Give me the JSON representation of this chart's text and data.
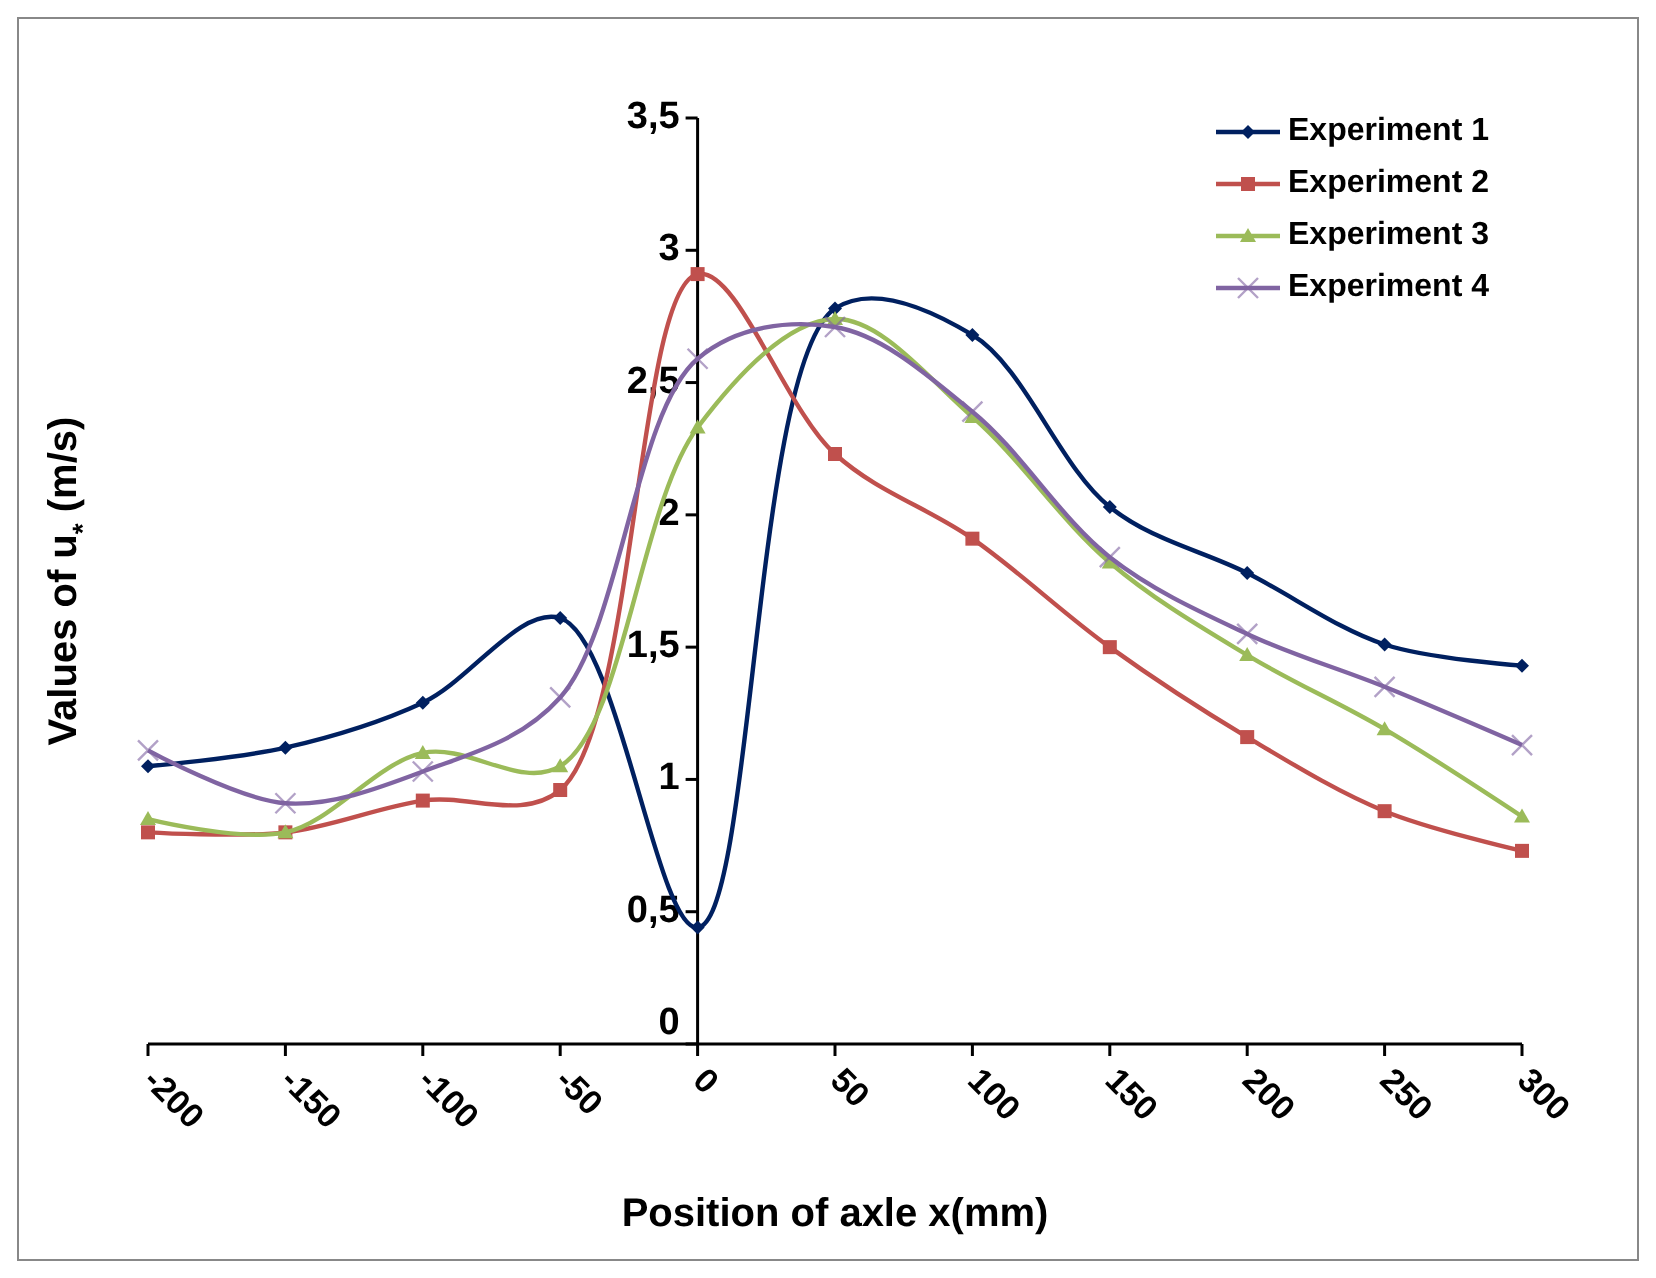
{
  "chart_data": {
    "type": "line",
    "xlabel": "Position of axle x(mm)",
    "ylabel": "Values of u$_{*}$ (m/s)",
    "x": [
      -200,
      -150,
      -100,
      -50,
      0,
      50,
      100,
      150,
      200,
      250,
      300
    ],
    "xlim": [
      -200,
      300
    ],
    "xticks": [
      -200,
      -150,
      -100,
      -50,
      0,
      50,
      100,
      150,
      200,
      250,
      300
    ],
    "ylim": [
      0,
      3.5
    ],
    "yticks": [
      0,
      {
        "value": 0.5,
        "label": "0,5"
      },
      1,
      {
        "value": 1.5,
        "label": "1,5"
      },
      2,
      {
        "value": 2.5,
        "label": "2,5"
      },
      3,
      {
        "value": 3.5,
        "label": "3,5"
      }
    ],
    "legend": "top right",
    "grid": false,
    "series": [
      {
        "name": "Experiment 1",
        "color": "#002060",
        "marker": "diamond",
        "values": [
          1.05,
          1.12,
          1.29,
          1.61,
          0.44,
          2.78,
          2.68,
          2.03,
          1.78,
          1.51,
          1.43
        ]
      },
      {
        "name": "Experiment 2",
        "color": "#c0504d",
        "marker": "square",
        "values": [
          0.8,
          0.8,
          0.92,
          0.96,
          2.91,
          2.23,
          1.91,
          1.5,
          1.16,
          0.88,
          0.73
        ]
      },
      {
        "name": "Experiment 3",
        "color": "#9bbb59",
        "marker": "triangle",
        "values": [
          0.85,
          0.8,
          1.1,
          1.05,
          2.33,
          2.74,
          2.37,
          1.82,
          1.47,
          1.19,
          0.86
        ]
      },
      {
        "name": "Experiment 4",
        "color": "#8064a2",
        "marker": "cross",
        "values": [
          1.11,
          0.91,
          1.03,
          1.31,
          2.59,
          2.71,
          2.39,
          1.84,
          1.55,
          1.35,
          1.13
        ]
      }
    ]
  }
}
